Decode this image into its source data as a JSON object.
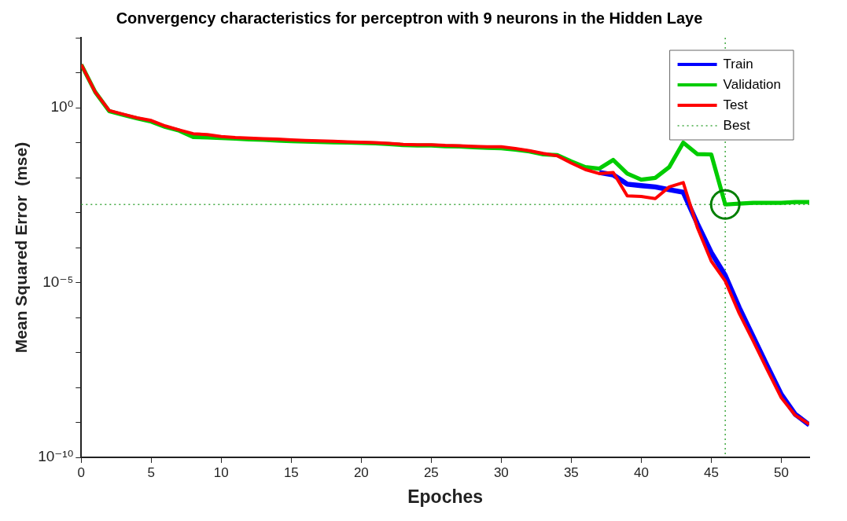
{
  "chart_data": {
    "type": "line",
    "title": "Convergency characteristics for perceptron with 9 neurons in the Hidden Laye",
    "xlabel": "Epoches",
    "ylabel": "Mean Squared Error  (mse)",
    "x": [
      0,
      1,
      2,
      3,
      4,
      5,
      6,
      7,
      8,
      9,
      10,
      11,
      12,
      13,
      14,
      15,
      16,
      17,
      18,
      19,
      20,
      21,
      22,
      23,
      24,
      25,
      26,
      27,
      28,
      29,
      30,
      31,
      32,
      33,
      34,
      35,
      36,
      37,
      38,
      39,
      40,
      41,
      42,
      43,
      44,
      45,
      46,
      47,
      48,
      49,
      50,
      51,
      52
    ],
    "series": [
      {
        "name": "Train",
        "color": "#0000ff",
        "values": [
          null,
          null,
          null,
          null,
          null,
          null,
          null,
          null,
          null,
          null,
          null,
          null,
          null,
          null,
          null,
          null,
          null,
          null,
          null,
          null,
          null,
          null,
          null,
          null,
          null,
          null,
          null,
          null,
          null,
          null,
          null,
          null,
          null,
          null,
          null,
          null,
          null,
          0.014,
          0.012,
          0.0065,
          0.0059,
          0.0054,
          0.0045,
          0.0038,
          0.00049,
          7.2e-05,
          1.6e-05,
          1.9e-06,
          2.8e-07,
          4.1e-08,
          6.3e-09,
          1.7e-09,
          8.5e-10
        ]
      },
      {
        "name": "Validation",
        "color": "#00cc00",
        "values": [
          17,
          2.8,
          0.79,
          0.62,
          0.49,
          0.4,
          0.28,
          0.22,
          0.145,
          0.14,
          0.135,
          0.13,
          0.123,
          0.12,
          0.115,
          0.11,
          0.107,
          0.105,
          0.102,
          0.1,
          0.098,
          0.095,
          0.091,
          0.085,
          0.083,
          0.083,
          0.079,
          0.078,
          0.074,
          0.071,
          0.069,
          0.063,
          0.056,
          0.046,
          0.044,
          0.029,
          0.02,
          0.018,
          0.032,
          0.013,
          0.0087,
          0.0098,
          0.02,
          0.1,
          0.047,
          0.046,
          0.0017,
          0.0018,
          0.0019,
          0.0019,
          0.0019,
          0.002,
          0.002
        ]
      },
      {
        "name": "Test",
        "color": "#ff0000",
        "values": [
          17,
          2.8,
          0.83,
          0.65,
          0.51,
          0.43,
          0.3,
          0.23,
          0.18,
          0.17,
          0.15,
          0.14,
          0.135,
          0.13,
          0.126,
          0.12,
          0.115,
          0.112,
          0.11,
          0.105,
          0.102,
          0.1,
          0.095,
          0.089,
          0.087,
          0.087,
          0.083,
          0.081,
          0.078,
          0.076,
          0.076,
          0.068,
          0.059,
          0.049,
          0.042,
          0.026,
          0.017,
          0.013,
          0.014,
          0.003,
          0.0029,
          0.0025,
          0.0054,
          0.0072,
          0.00038,
          4.1e-05,
          1.1e-05,
          1.3e-06,
          2.1e-07,
          3.2e-08,
          5.1e-09,
          1.6e-09,
          8.9e-10
        ]
      },
      {
        "type": "scatter",
        "color": "#007f00",
        "marker": "circle",
        "x": [
          46
        ],
        "values": [
          0.0017
        ]
      }
    ],
    "ref_lines": [
      {
        "axis": "x",
        "value": 46,
        "label": "Best",
        "color": "#44aa44",
        "line_style": "dotted"
      },
      {
        "axis": "y",
        "value": 0.0017,
        "color": "#44aa44",
        "line_style": "dotted"
      }
    ],
    "log": "y",
    "xlim": [
      0,
      52
    ],
    "xticks": [
      0,
      5,
      10,
      15,
      20,
      25,
      30,
      35,
      40,
      45,
      50
    ],
    "ylim": [
      1e-10,
      100
    ],
    "yticks": [
      {
        "value": 1e-10,
        "label": "10⁻¹⁰"
      },
      {
        "value": 1e-09,
        "label": null
      },
      {
        "value": 1e-08,
        "label": null
      },
      {
        "value": 1e-07,
        "label": null
      },
      {
        "value": 1e-06,
        "label": null
      },
      {
        "value": 1e-05,
        "label": "10⁻⁵"
      },
      {
        "value": 0.0001,
        "label": null
      },
      {
        "value": 0.001,
        "label": null
      },
      {
        "value": 0.01,
        "label": null
      },
      {
        "value": 0.1,
        "label": null
      },
      {
        "value": 1,
        "label": "10⁰"
      },
      {
        "value": 10,
        "label": null
      },
      {
        "value": 100,
        "label": null
      }
    ],
    "grid": false,
    "legend": "top right",
    "line_style": "solid"
  }
}
